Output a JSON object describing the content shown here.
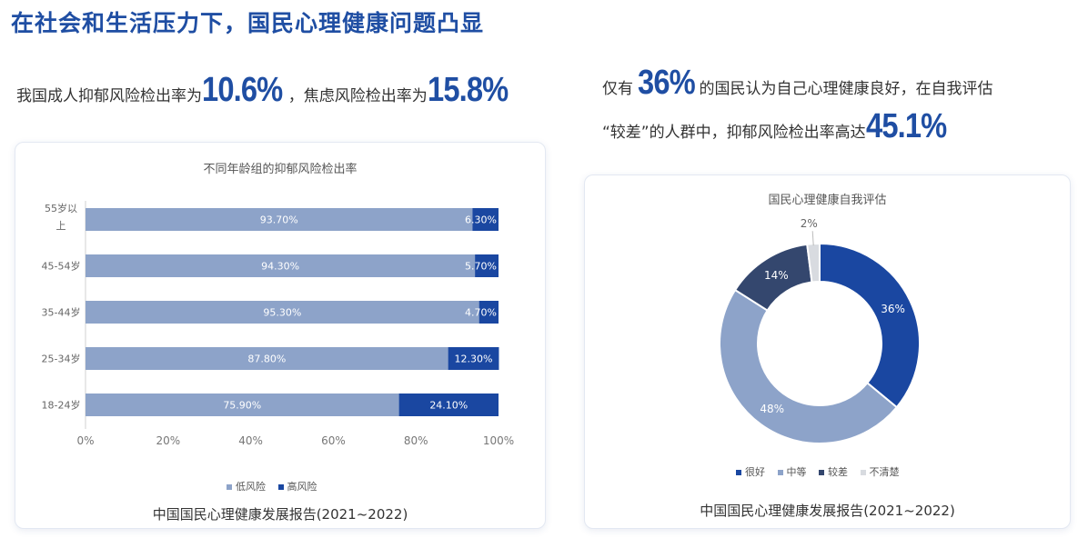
{
  "title": "在社会和生活压力下，国民心理健康问题凸显",
  "stat1": {
    "prefix": "我国成人抑郁风险检出率为",
    "value1": "10.6%",
    "mid": "，焦虑风险检出率为",
    "value2": "15.8%"
  },
  "stat2": {
    "prefix": "仅有",
    "value1": "36%",
    "mid": "的国民认为自己心理健康良好，在自我评估",
    "line2": "“较差”的人群中，抑郁风险检出率高达",
    "value2": "45.1%"
  },
  "colors": {
    "low": "#8da3c9",
    "high": "#1a47a1",
    "good": "#1a47a1",
    "mid": "#8da3c9",
    "poor": "#34476e",
    "unclear": "#d8dbe0",
    "accent": "#1f4ea3"
  },
  "chart_data": [
    {
      "type": "bar",
      "orientation": "horizontal",
      "stacked": true,
      "title": "不同年龄组的抑郁风险检出率",
      "categories": [
        "55岁以上",
        "45-54岁",
        "35-44岁",
        "25-34岁",
        "18-24岁"
      ],
      "category_lines": [
        [
          "55岁以",
          "上"
        ],
        [
          "45-54岁"
        ],
        [
          "35-44岁"
        ],
        [
          "25-34岁"
        ],
        [
          "18-24岁"
        ]
      ],
      "series": [
        {
          "name": "低风险",
          "values": [
            93.7,
            94.3,
            95.3,
            87.8,
            75.9
          ],
          "labels": [
            "93.70%",
            "94.30%",
            "95.30%",
            "87.80%",
            "75.90%"
          ]
        },
        {
          "name": "高风险",
          "values": [
            6.3,
            5.7,
            4.7,
            12.3,
            24.1
          ],
          "labels": [
            "6.30%",
            "5.70%",
            "4.70%",
            "12.30%",
            "24.10%"
          ]
        }
      ],
      "xticks": [
        "0%",
        "20%",
        "40%",
        "60%",
        "80%",
        "100%"
      ],
      "xlim": [
        0,
        100
      ],
      "legend": "bottom",
      "source": "中国国民心理健康发展报告(2021~2022)"
    },
    {
      "type": "pie",
      "donut": true,
      "title": "国民心理健康自我评估",
      "slices": [
        {
          "name": "很好",
          "value": 36,
          "label": "36%"
        },
        {
          "name": "中等",
          "value": 48,
          "label": "48%"
        },
        {
          "name": "较差",
          "value": 14,
          "label": "14%"
        },
        {
          "name": "不清楚",
          "value": 2,
          "label": "2%"
        }
      ],
      "legend": "bottom",
      "source": "中国国民心理健康发展报告(2021~2022)"
    }
  ]
}
